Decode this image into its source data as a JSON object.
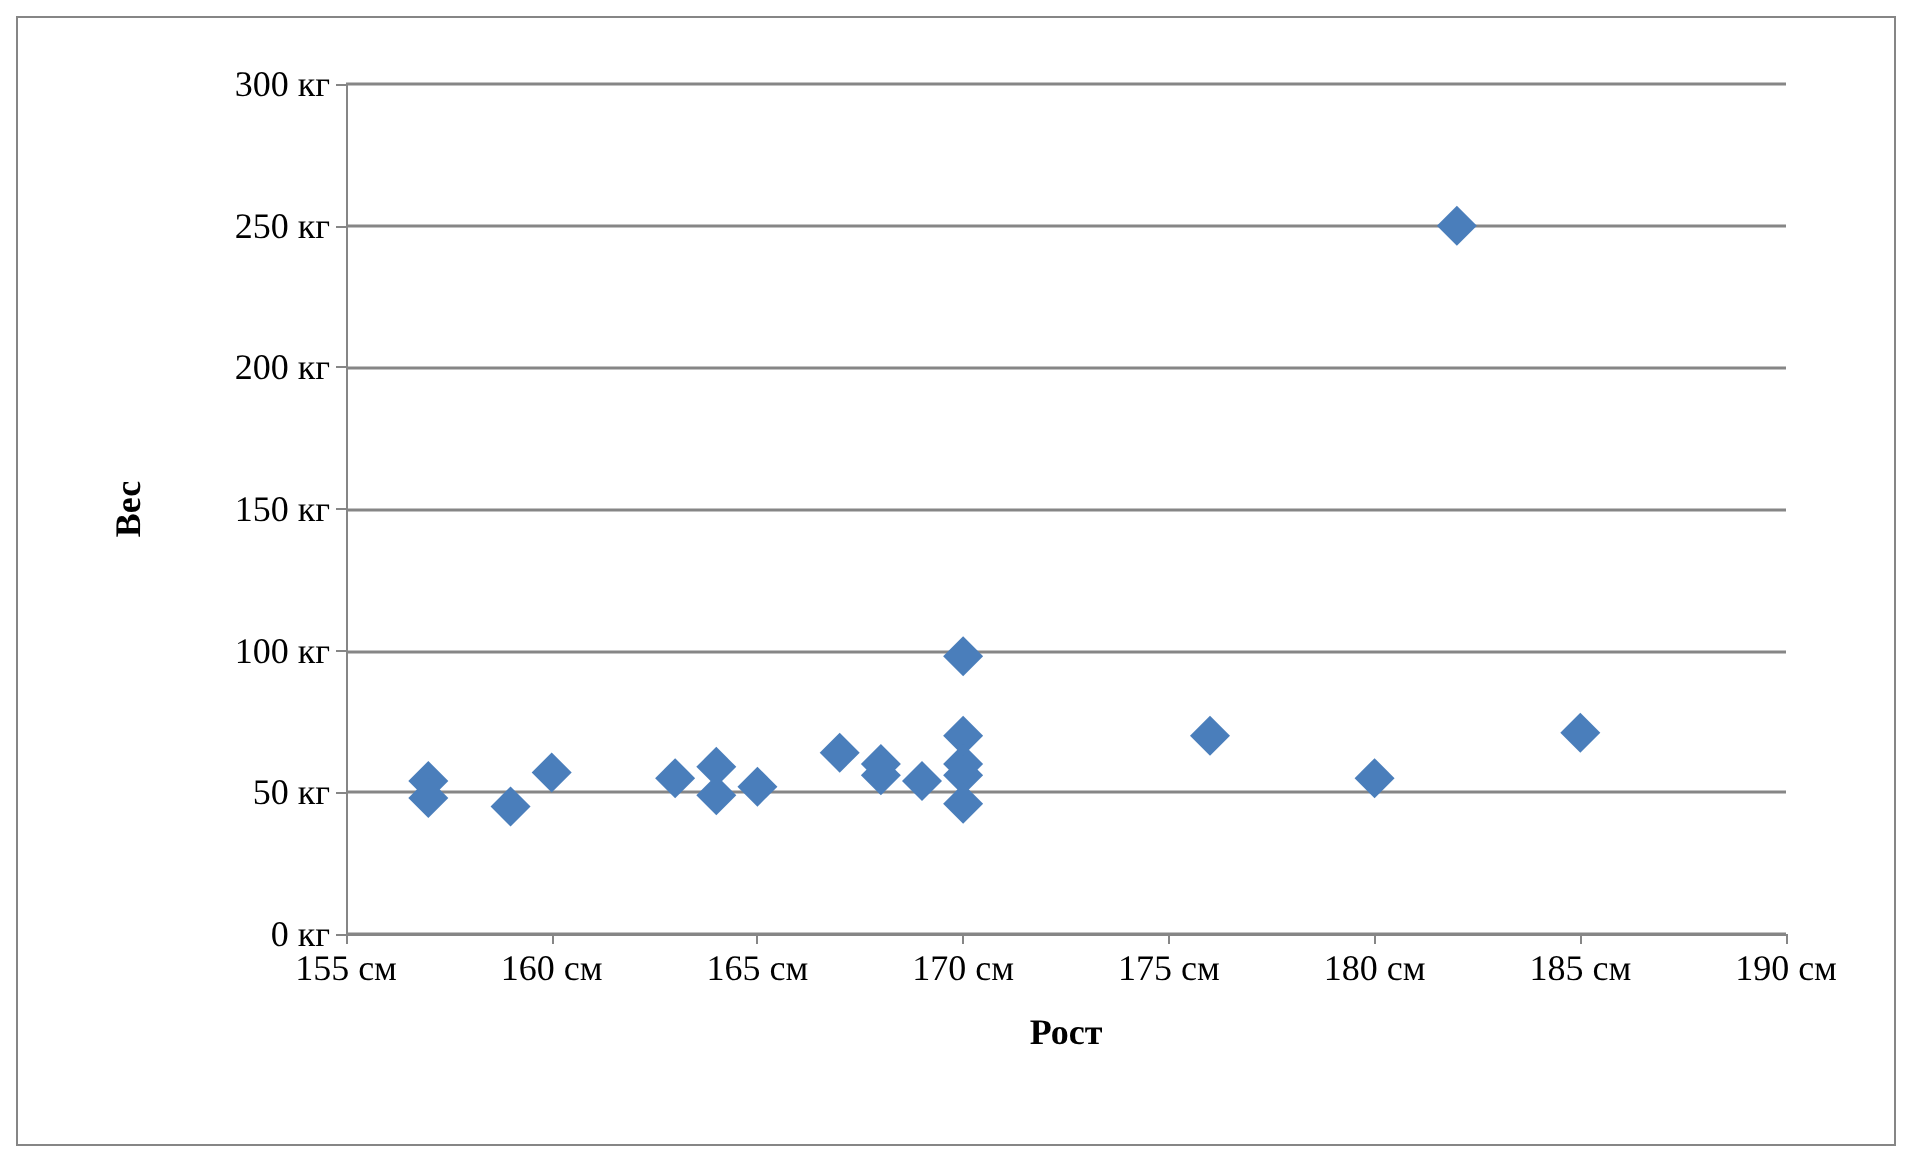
{
  "chart_data": {
    "type": "scatter",
    "xlabel": "Рост",
    "ylabel": "Вес",
    "x": [
      157,
      157,
      159,
      160,
      163,
      164,
      164,
      165,
      167,
      168,
      168,
      169,
      170,
      170,
      170,
      170,
      170,
      176,
      180,
      182,
      185
    ],
    "values": [
      54,
      48,
      45,
      57,
      55,
      59,
      49,
      52,
      64,
      60,
      56,
      54,
      98,
      70,
      60,
      56,
      46,
      70,
      55,
      250,
      71
    ],
    "color": "#4a7ebb",
    "marker": "diamond",
    "grid": "y",
    "xlim": [
      155,
      190
    ],
    "xticks": [
      {
        "value": 155,
        "label": "155 см"
      },
      {
        "value": 160,
        "label": "160 см"
      },
      {
        "value": 165,
        "label": "165 см"
      },
      {
        "value": 170,
        "label": "170 см"
      },
      {
        "value": 175,
        "label": "175 см"
      },
      {
        "value": 180,
        "label": "180 см"
      },
      {
        "value": 185,
        "label": "185 см"
      },
      {
        "value": 190,
        "label": "190 см"
      }
    ],
    "ylim": [
      0,
      300
    ],
    "yticks": [
      {
        "value": 0,
        "label": "0 кг"
      },
      {
        "value": 50,
        "label": "50 кг"
      },
      {
        "value": 100,
        "label": "100 кг"
      },
      {
        "value": 150,
        "label": "150 кг"
      },
      {
        "value": 200,
        "label": "200 кг"
      },
      {
        "value": 250,
        "label": "250 кг"
      },
      {
        "value": 300,
        "label": "300 кг"
      }
    ]
  }
}
